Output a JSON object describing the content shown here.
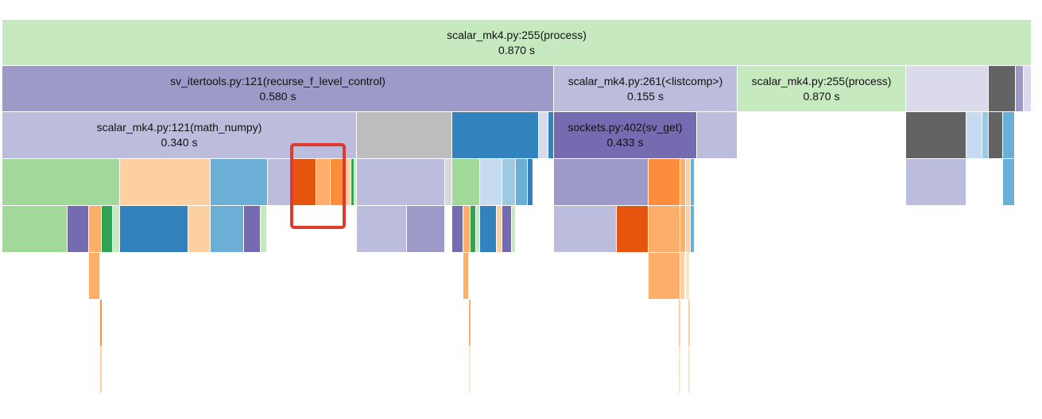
{
  "labeled_frames": [
    {
      "id": "process-root",
      "title": "scalar_mk4.py:255(process)",
      "time": "0.870 s",
      "color": "#c7e9c0"
    },
    {
      "id": "recurse-f-level-control",
      "title": "sv_itertools.py:121(recurse_f_level_control)",
      "time": "0.580 s",
      "color": "#9e9ac8"
    },
    {
      "id": "listcomp",
      "title": "scalar_mk4.py:261(<listcomp>)",
      "time": "0.155 s",
      "color": "#bcbddc"
    },
    {
      "id": "process-nested",
      "title": "scalar_mk4.py:255(process)",
      "time": "0.870 s",
      "color": "#c7e9c0"
    },
    {
      "id": "math-numpy",
      "title": "scalar_mk4.py:121(math_numpy)",
      "time": "0.340 s",
      "color": "#bcbddc"
    },
    {
      "id": "sv-get",
      "title": "sockets.py:402(sv_get)",
      "time": "0.433 s",
      "color": "#756bb1"
    }
  ]
}
